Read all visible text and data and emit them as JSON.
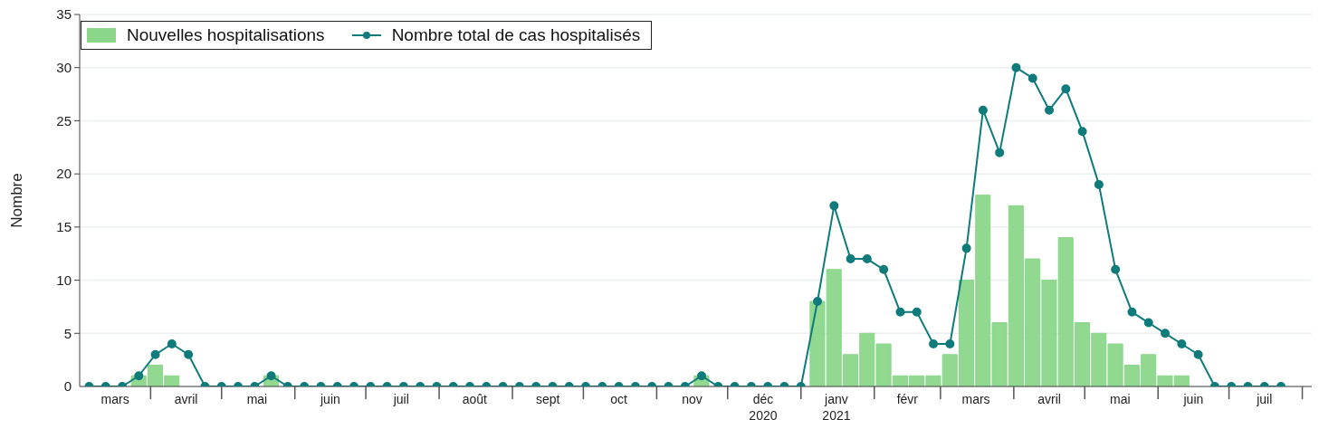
{
  "chart_data": {
    "type": "bar",
    "ylabel": "Nombre",
    "x": [
      "2020-03-06",
      "2020-03-13",
      "2020-03-20",
      "2020-03-27",
      "2020-04-03",
      "2020-04-10",
      "2020-04-17",
      "2020-04-24",
      "2020-05-01",
      "2020-05-08",
      "2020-05-15",
      "2020-05-22",
      "2020-05-29",
      "2020-06-05",
      "2020-06-12",
      "2020-06-19",
      "2020-06-26",
      "2020-07-03",
      "2020-07-10",
      "2020-07-17",
      "2020-07-24",
      "2020-07-31",
      "2020-08-07",
      "2020-08-14",
      "2020-08-21",
      "2020-08-28",
      "2020-09-04",
      "2020-09-11",
      "2020-09-18",
      "2020-09-25",
      "2020-10-02",
      "2020-10-09",
      "2020-10-16",
      "2020-10-23",
      "2020-10-30",
      "2020-11-06",
      "2020-11-13",
      "2020-11-20",
      "2020-11-27",
      "2020-12-04",
      "2020-12-11",
      "2020-12-18",
      "2020-12-25",
      "2021-01-01",
      "2021-01-08",
      "2021-01-15",
      "2021-01-22",
      "2021-01-29",
      "2021-02-05",
      "2021-02-12",
      "2021-02-19",
      "2021-02-26",
      "2021-03-05",
      "2021-03-12",
      "2021-03-19",
      "2021-03-26",
      "2021-04-02",
      "2021-04-09",
      "2021-04-16",
      "2021-04-23",
      "2021-04-30",
      "2021-05-07",
      "2021-05-14",
      "2021-05-21",
      "2021-05-28",
      "2021-06-04",
      "2021-06-11",
      "2021-06-18",
      "2021-06-25",
      "2021-07-02",
      "2021-07-09",
      "2021-07-16",
      "2021-07-23"
    ],
    "series": [
      {
        "name": "Nouvelles hospitalisations",
        "color": "#8bd68a",
        "values": [
          0,
          0,
          0,
          1,
          2,
          1,
          0,
          0,
          0,
          0,
          0,
          1,
          0,
          0,
          0,
          0,
          0,
          0,
          0,
          0,
          0,
          0,
          0,
          0,
          0,
          0,
          0,
          0,
          0,
          0,
          0,
          0,
          0,
          0,
          0,
          0,
          0,
          1,
          0,
          0,
          0,
          0,
          0,
          0,
          8,
          11,
          3,
          5,
          4,
          1,
          1,
          1,
          3,
          10,
          18,
          6,
          17,
          12,
          10,
          14,
          6,
          5,
          4,
          2,
          3,
          1,
          1,
          0,
          0,
          0,
          0,
          0,
          0
        ]
      },
      {
        "name": "Nombre total de cas hospitalisés",
        "type": "line",
        "color": "#0f7b7b",
        "values": [
          0,
          0,
          0,
          1,
          3,
          4,
          3,
          0,
          0,
          0,
          0,
          1,
          0,
          0,
          0,
          0,
          0,
          0,
          0,
          0,
          0,
          0,
          0,
          0,
          0,
          0,
          0,
          0,
          0,
          0,
          0,
          0,
          0,
          0,
          0,
          0,
          0,
          1,
          0,
          0,
          0,
          0,
          0,
          0,
          8,
          17,
          12,
          12,
          11,
          7,
          7,
          4,
          4,
          13,
          26,
          22,
          30,
          29,
          26,
          28,
          24,
          19,
          11,
          7,
          6,
          5,
          4,
          3,
          0,
          0,
          0,
          0,
          0
        ]
      }
    ],
    "xlim": [
      "2020-03-02",
      "2021-08-05"
    ],
    "xticks": [
      {
        "value": "2020-03-17",
        "label": "mars"
      },
      {
        "value": "2020-04-01",
        "label": null
      },
      {
        "value": "2020-04-16",
        "label": "avril"
      },
      {
        "value": "2020-05-01",
        "label": null
      },
      {
        "value": "2020-05-16",
        "label": "mai"
      },
      {
        "value": "2020-06-01",
        "label": null
      },
      {
        "value": "2020-06-16",
        "label": "juin"
      },
      {
        "value": "2020-07-01",
        "label": null
      },
      {
        "value": "2020-07-16",
        "label": "juil"
      },
      {
        "value": "2020-08-01",
        "label": null
      },
      {
        "value": "2020-08-16",
        "label": "août"
      },
      {
        "value": "2020-09-01",
        "label": null
      },
      {
        "value": "2020-09-16",
        "label": "sept"
      },
      {
        "value": "2020-10-01",
        "label": null
      },
      {
        "value": "2020-10-16",
        "label": "oct"
      },
      {
        "value": "2020-11-01",
        "label": null
      },
      {
        "value": "2020-11-16",
        "label": "nov"
      },
      {
        "value": "2020-12-01",
        "label": null
      },
      {
        "value": "2020-12-16",
        "label": "déc\n2020"
      },
      {
        "value": "2021-01-01",
        "label": null
      },
      {
        "value": "2021-01-16",
        "label": "janv\n2021"
      },
      {
        "value": "2021-02-01",
        "label": null
      },
      {
        "value": "2021-02-15",
        "label": "févr"
      },
      {
        "value": "2021-03-01",
        "label": null
      },
      {
        "value": "2021-03-16",
        "label": "mars"
      },
      {
        "value": "2021-04-01",
        "label": null
      },
      {
        "value": "2021-04-16",
        "label": "avril"
      },
      {
        "value": "2021-05-01",
        "label": null
      },
      {
        "value": "2021-05-16",
        "label": "mai"
      },
      {
        "value": "2021-06-01",
        "label": null
      },
      {
        "value": "2021-06-16",
        "label": "juin"
      },
      {
        "value": "2021-07-01",
        "label": null
      },
      {
        "value": "2021-07-16",
        "label": "juil"
      },
      {
        "value": "2021-08-01",
        "label": null
      }
    ],
    "ylim": [
      0,
      35
    ],
    "yticks": [
      0,
      5,
      10,
      15,
      20,
      25,
      30,
      35
    ],
    "grid": "y",
    "legend": "top left",
    "marker": "circle",
    "line_style": "solid"
  }
}
